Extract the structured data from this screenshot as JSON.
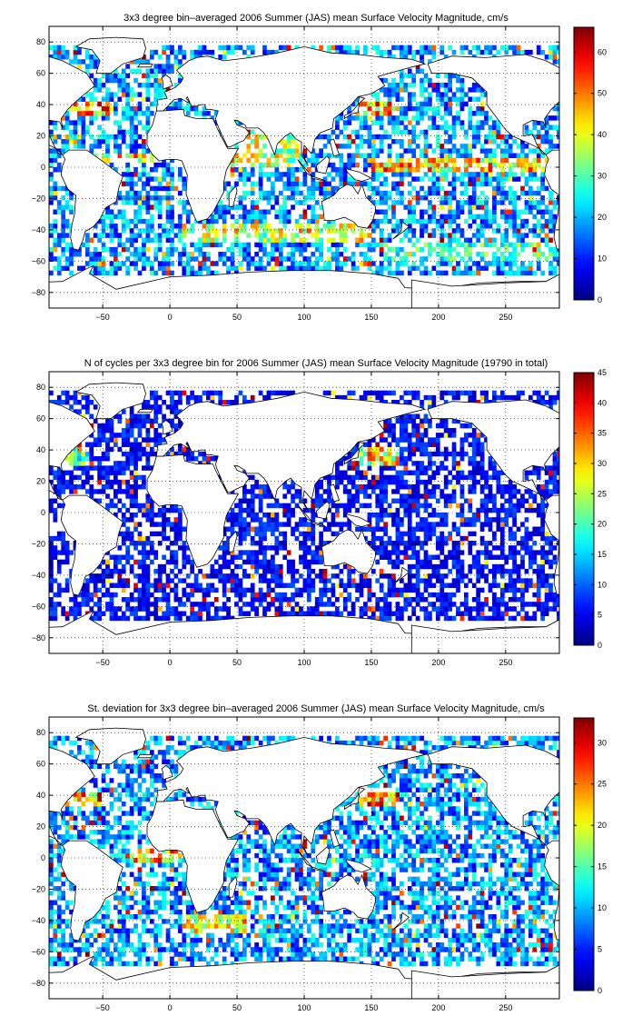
{
  "chart_data": [
    {
      "type": "heatmap",
      "title": "3x3 degree bin–averaged 2006 Summer (JAS) mean Surface Velocity Magnitude, cm/s",
      "xlabel": "",
      "ylabel": "",
      "xlim": [
        -90,
        290
      ],
      "ylim": [
        -90,
        90
      ],
      "x_ticks": [
        "−50",
        "0",
        "50",
        "100",
        "150",
        "200",
        "250"
      ],
      "x_tick_values": [
        -50,
        0,
        50,
        100,
        150,
        200,
        250
      ],
      "y_ticks": [
        "80",
        "60",
        "40",
        "20",
        "0",
        "−20",
        "−40",
        "−60",
        "−80"
      ],
      "y_tick_values": [
        80,
        60,
        40,
        20,
        0,
        -20,
        -40,
        -60,
        -80
      ],
      "grid": true,
      "colormap": "jet",
      "bin_size_deg": 3,
      "colorbar": {
        "min": 0,
        "max": 66,
        "ticks": [
          "0",
          "10",
          "20",
          "30",
          "40",
          "50",
          "60"
        ],
        "tick_values": [
          0,
          10,
          20,
          30,
          40,
          50,
          60
        ]
      },
      "regional_means": [
        {
          "lon": [
            -80,
            -5
          ],
          "lat": [
            3,
            9
          ],
          "value": 45
        },
        {
          "lon": [
            150,
            285
          ],
          "lat": [
            -3,
            6
          ],
          "value": 45
        },
        {
          "lon": [
            -75,
            -45
          ],
          "lat": [
            33,
            42
          ],
          "value": 50
        },
        {
          "lon": [
            140,
            170
          ],
          "lat": [
            33,
            42
          ],
          "value": 50
        },
        {
          "lon": [
            10,
            150
          ],
          "lat": [
            -48,
            -36
          ],
          "value": 40
        },
        {
          "lon": [
            160,
            285
          ],
          "lat": [
            -60,
            -48
          ],
          "value": 30
        },
        {
          "lon": [
            45,
            95
          ],
          "lat": [
            0,
            20
          ],
          "value": 38
        }
      ],
      "background_value": 18
    },
    {
      "type": "heatmap",
      "title": "N of cycles per 3x3 degree bin for 2006 Summer (JAS) mean Surface Velocity Magnitude (19790 in total)",
      "xlabel": "",
      "ylabel": "",
      "xlim": [
        -90,
        290
      ],
      "ylim": [
        -90,
        90
      ],
      "x_ticks": [
        "−50",
        "0",
        "50",
        "100",
        "150",
        "200",
        "250"
      ],
      "x_tick_values": [
        -50,
        0,
        50,
        100,
        150,
        200,
        250
      ],
      "y_ticks": [
        "80",
        "60",
        "40",
        "20",
        "0",
        "−20",
        "−40",
        "−60",
        "−80"
      ],
      "y_tick_values": [
        80,
        60,
        40,
        20,
        0,
        -20,
        -40,
        -60,
        -80
      ],
      "grid": true,
      "colormap": "jet",
      "bin_size_deg": 3,
      "colorbar": {
        "min": 0,
        "max": 45,
        "ticks": [
          "0",
          "5",
          "10",
          "15",
          "20",
          "25",
          "30",
          "35",
          "40",
          "45"
        ],
        "tick_values": [
          0,
          5,
          10,
          15,
          20,
          25,
          30,
          35,
          40,
          45
        ]
      },
      "regional_means": [
        {
          "lon": [
            140,
            170
          ],
          "lat": [
            30,
            42
          ],
          "value": 30
        },
        {
          "lon": [
            -80,
            -60
          ],
          "lat": [
            30,
            42
          ],
          "value": 22
        }
      ],
      "background_value": 6
    },
    {
      "type": "heatmap",
      "title": "St. deviation for 3x3 degree bin–averaged 2006 Summer (JAS) mean Surface Velocity Magnitude, cm/s",
      "xlabel": "",
      "ylabel": "",
      "xlim": [
        -90,
        290
      ],
      "ylim": [
        -90,
        90
      ],
      "x_ticks": [
        "−50",
        "0",
        "50",
        "100",
        "150",
        "200",
        "250"
      ],
      "x_tick_values": [
        -50,
        0,
        50,
        100,
        150,
        200,
        250
      ],
      "y_ticks": [
        "80",
        "60",
        "40",
        "20",
        "0",
        "−20",
        "−40",
        "−60",
        "−80"
      ],
      "y_tick_values": [
        80,
        60,
        40,
        20,
        0,
        -20,
        -40,
        -60,
        -80
      ],
      "grid": true,
      "colormap": "jet",
      "bin_size_deg": 3,
      "colorbar": {
        "min": 0,
        "max": 33,
        "ticks": [
          "0",
          "5",
          "10",
          "15",
          "20",
          "25",
          "30"
        ],
        "tick_values": [
          0,
          5,
          10,
          15,
          20,
          25,
          30
        ]
      },
      "regional_means": [
        {
          "lon": [
            -75,
            -45
          ],
          "lat": [
            33,
            42
          ],
          "value": 25
        },
        {
          "lon": [
            140,
            170
          ],
          "lat": [
            33,
            42
          ],
          "value": 25
        },
        {
          "lon": [
            -30,
            10
          ],
          "lat": [
            -3,
            6
          ],
          "value": 22
        },
        {
          "lon": [
            10,
            60
          ],
          "lat": [
            -48,
            -36
          ],
          "value": 20
        }
      ],
      "background_value": 9
    }
  ]
}
